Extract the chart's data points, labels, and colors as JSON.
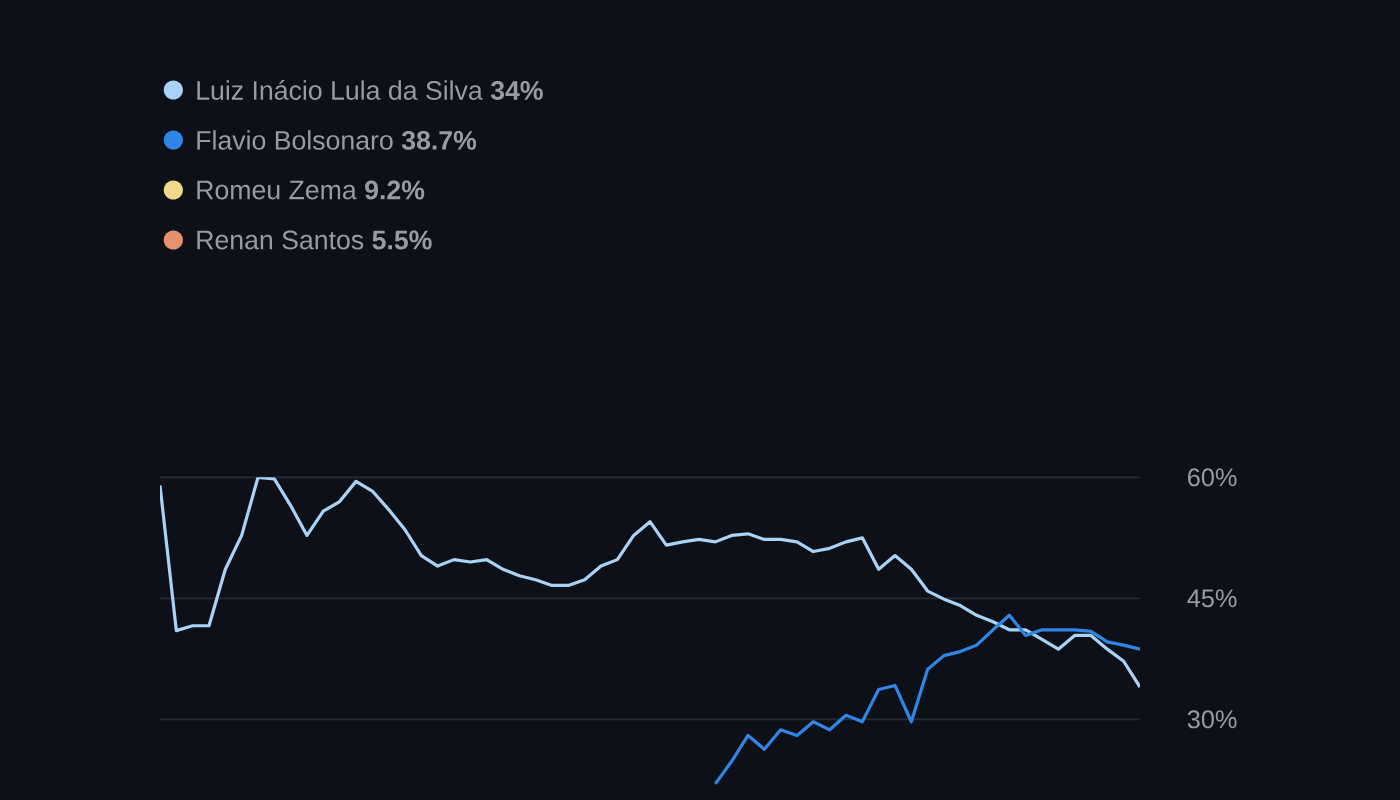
{
  "chart_data": {
    "type": "line",
    "categories": [
      null,
      null,
      null,
      null,
      null,
      null,
      null,
      null,
      null,
      null,
      null,
      null,
      null,
      null,
      null,
      null,
      null,
      null,
      null,
      null,
      null,
      null,
      null,
      null,
      null,
      null,
      null,
      null,
      null,
      null,
      null,
      null,
      null,
      null,
      null,
      null,
      null,
      null,
      null,
      null,
      null,
      null,
      null,
      null,
      null,
      null,
      null,
      null,
      null,
      null,
      null,
      null,
      null,
      null,
      null,
      null,
      null,
      null,
      null,
      null,
      null
    ],
    "series": [
      {
        "name": "Luiz Inácio Lula da Silva **34%**",
        "color": "#a9d2f7",
        "values": [
          59,
          41,
          41.6,
          41.6,
          48.6,
          52.8,
          60,
          59.8,
          56.5,
          52.8,
          55.8,
          57,
          59.5,
          58.3,
          56,
          53.5,
          50.3,
          49,
          49.8,
          49.5,
          49.8,
          48.6,
          47.8,
          47.3,
          46.6,
          46.6,
          47.3,
          49,
          49.8,
          52.8,
          54.5,
          51.6,
          52,
          52.3,
          52,
          52.8,
          53,
          52.3,
          52.3,
          52,
          50.8,
          51.2,
          52,
          52.5,
          48.6,
          50.3,
          48.6,
          45.9,
          44.9,
          44.1,
          42.9,
          42.1,
          41.1,
          41.1,
          39.9,
          38.7,
          40.4,
          40.4,
          38.7,
          37.2,
          34
        ]
      },
      {
        "name": "Flavio Bolsonaro **38.7%**",
        "color": "#2f86e6",
        "values": [
          null,
          null,
          null,
          null,
          null,
          null,
          null,
          null,
          null,
          null,
          null,
          null,
          null,
          null,
          null,
          null,
          null,
          null,
          null,
          null,
          null,
          null,
          null,
          null,
          null,
          null,
          null,
          null,
          null,
          null,
          null,
          null,
          null,
          null,
          22,
          24.8,
          28,
          26.3,
          28.7,
          28,
          29.7,
          28.7,
          30.5,
          29.7,
          33.7,
          34.2,
          29.7,
          36.2,
          37.9,
          38.4,
          39.2,
          41.1,
          42.9,
          40.4,
          41.1,
          41.1,
          41.1,
          40.9,
          39.6,
          39.2,
          38.7
        ]
      },
      {
        "name": "Romeu Zema **9.2%**",
        "color": "#f2d98a",
        "values": [
          null,
          null,
          null,
          null,
          null,
          null,
          null,
          null,
          null,
          null,
          null,
          null,
          null,
          null,
          null,
          null,
          null,
          null,
          null,
          null,
          null,
          null,
          null,
          null,
          null,
          null,
          null,
          null,
          null,
          null,
          null,
          null,
          null,
          null,
          null,
          null,
          null,
          null,
          null,
          null,
          null,
          null,
          null,
          null,
          null,
          null,
          null,
          null,
          null,
          null,
          null,
          null,
          null,
          null,
          null,
          null,
          null,
          null,
          null,
          null,
          null
        ]
      },
      {
        "name": "Renan Santos **5.5%**",
        "color": "#e8916a",
        "values": [
          null,
          null,
          null,
          null,
          null,
          null,
          null,
          null,
          null,
          null,
          null,
          null,
          null,
          null,
          null,
          null,
          null,
          null,
          null,
          null,
          null,
          null,
          null,
          null,
          null,
          null,
          null,
          null,
          null,
          null,
          null,
          null,
          null,
          null,
          null,
          null,
          null,
          null,
          null,
          null,
          null,
          null,
          null,
          null,
          null,
          null,
          null,
          null,
          null,
          null,
          null,
          null,
          null,
          null,
          null,
          null,
          null,
          null,
          null,
          null,
          null
        ]
      }
    ],
    "ylim": [
      20,
      60
    ],
    "yticks": [
      {
        "value": 30,
        "label": "30%"
      },
      {
        "value": 45,
        "label": "45%"
      },
      {
        "value": 60,
        "label": "60%"
      }
    ],
    "grid": "y",
    "legend": "top left",
    "tick_labels": "y",
    "line_style": "solid",
    "marker": "none"
  }
}
